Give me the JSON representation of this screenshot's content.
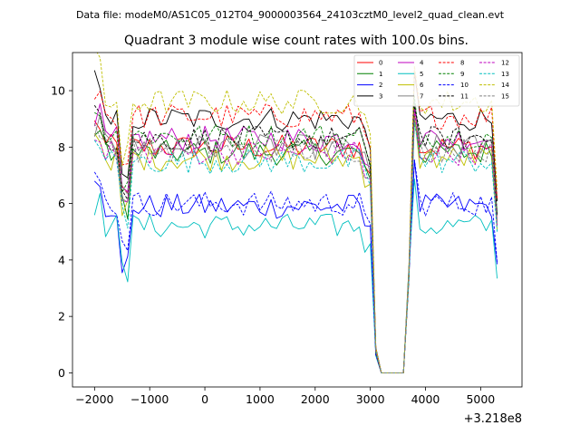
{
  "chart_data": {
    "type": "line",
    "suptitle": "Data file: modeM0/AS1C05_012T04_9000003564_24103cztM0_level2_quad_clean.evt",
    "title": "Quadrant 3 module wise count rates with 100.0s bins.",
    "xlabel": "",
    "ylabel": "",
    "x_offset_label": "+3.218e8",
    "xlim": [
      -2400,
      5750
    ],
    "ylim": [
      -0.5,
      11.35
    ],
    "xticks": [
      -2000,
      -1000,
      0,
      1000,
      2000,
      3000,
      4000,
      5000
    ],
    "xtick_labels": [
      "−2000",
      "−1000",
      "0",
      "1000",
      "2000",
      "3000",
      "4000",
      "5000"
    ],
    "yticks": [
      0,
      2,
      4,
      6,
      8,
      10
    ],
    "ytick_labels": [
      "0",
      "2",
      "4",
      "6",
      "8",
      "10"
    ],
    "legend_position": "top-right",
    "bin_size_s": 100,
    "x_start": -2000,
    "x_end": 5350,
    "gap_x": [
      3200,
      3300,
      3400,
      3500,
      3600
    ],
    "series": [
      {
        "name": "0",
        "color": "#ff0000",
        "dash": "solid",
        "base": 8.0
      },
      {
        "name": "1",
        "color": "#008000",
        "dash": "solid",
        "base": 7.8
      },
      {
        "name": "2",
        "color": "#0000ff",
        "dash": "solid",
        "base": 5.9
      },
      {
        "name": "3",
        "color": "#000000",
        "dash": "solid",
        "base": 9.0
      },
      {
        "name": "4",
        "color": "#bf00bf",
        "dash": "solid",
        "base": 8.3
      },
      {
        "name": "5",
        "color": "#00bfbf",
        "dash": "solid",
        "base": 5.2
      },
      {
        "name": "6",
        "color": "#bfbf00",
        "dash": "solid",
        "base": 7.6
      },
      {
        "name": "7",
        "color": "#808080",
        "dash": "solid",
        "base": 8.0
      },
      {
        "name": "8",
        "color": "#ff0000",
        "dash": "dashed",
        "base": 9.1
      },
      {
        "name": "9",
        "color": "#008000",
        "dash": "dashed",
        "base": 8.4
      },
      {
        "name": "10",
        "color": "#0000ff",
        "dash": "dashed",
        "base": 6.0
      },
      {
        "name": "11",
        "color": "#000000",
        "dash": "dashed",
        "base": 8.3
      },
      {
        "name": "12",
        "color": "#bf00bf",
        "dash": "dashed",
        "base": 7.8
      },
      {
        "name": "13",
        "color": "#00bfbf",
        "dash": "dashed",
        "base": 7.5
      },
      {
        "name": "14",
        "color": "#bfbf00",
        "dash": "dashed",
        "base": 9.6
      },
      {
        "name": "15",
        "color": "#808080",
        "dash": "dashed",
        "base": 7.9
      }
    ]
  }
}
